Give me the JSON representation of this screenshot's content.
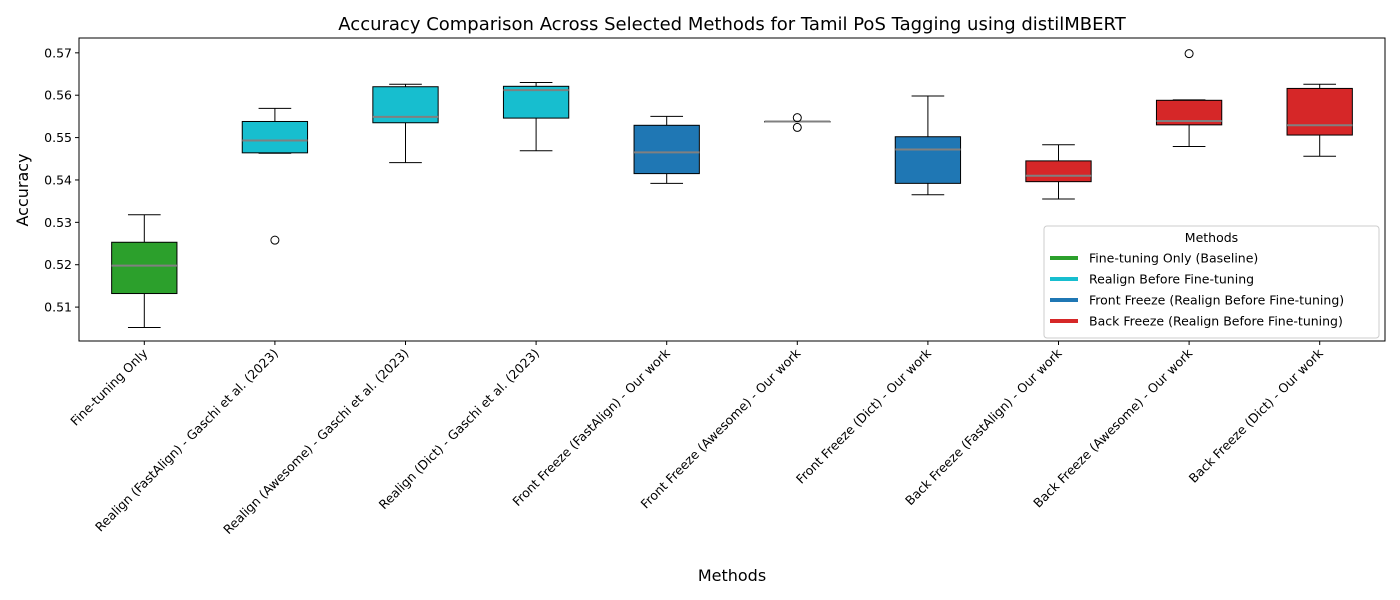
{
  "chart_data": {
    "type": "box",
    "title": "Accuracy Comparison Across Selected Methods for Tamil PoS Tagging using distilMBERT",
    "xlabel": "Methods",
    "ylabel": "Accuracy",
    "ylim": [
      0.502,
      0.5735
    ],
    "yticks": [
      0.51,
      0.52,
      0.53,
      0.54,
      0.55,
      0.56,
      0.57
    ],
    "grid": false,
    "legend": {
      "title": "Methods",
      "position": "center-right",
      "entries": [
        {
          "label": "Fine-tuning Only (Baseline)",
          "color": "#2ca02c"
        },
        {
          "label": "Realign Before Fine-tuning",
          "color": "#17becf"
        },
        {
          "label": "Front Freeze (Realign Before Fine-tuning)",
          "color": "#1f77b4"
        },
        {
          "label": "Back Freeze (Realign Before Fine-tuning)",
          "color": "#d62728"
        }
      ]
    },
    "series": [
      {
        "category": "Fine-tuning Only",
        "group": 0,
        "whisker_low": 0.5052,
        "q1": 0.5132,
        "median": 0.5198,
        "q3": 0.5253,
        "whisker_high": 0.5318,
        "outliers": []
      },
      {
        "category": "Realign (FastAlign) - Gaschi et al. (2023)",
        "group": 1,
        "whisker_low": 0.5463,
        "q1": 0.5464,
        "median": 0.5493,
        "q3": 0.5538,
        "whisker_high": 0.5569,
        "outliers": [
          0.5258
        ]
      },
      {
        "category": "Realign (Awesome) - Gaschi et al. (2023)",
        "group": 1,
        "whisker_low": 0.5441,
        "q1": 0.5535,
        "median": 0.5549,
        "q3": 0.562,
        "whisker_high": 0.5626,
        "outliers": []
      },
      {
        "category": "Realign (Dict) - Gaschi et al. (2023)",
        "group": 1,
        "whisker_low": 0.5469,
        "q1": 0.5546,
        "median": 0.5612,
        "q3": 0.5621,
        "whisker_high": 0.563,
        "outliers": []
      },
      {
        "category": "Front Freeze (FastAlign) - Our work",
        "group": 2,
        "whisker_low": 0.5392,
        "q1": 0.5415,
        "median": 0.5465,
        "q3": 0.5529,
        "whisker_high": 0.555,
        "outliers": []
      },
      {
        "category": "Front Freeze (Awesome) - Our work",
        "group": 2,
        "whisker_low": 0.5538,
        "q1": 0.5538,
        "median": 0.5538,
        "q3": 0.5538,
        "whisker_high": 0.5538,
        "outliers": [
          0.5547,
          0.5524
        ]
      },
      {
        "category": "Front Freeze (Dict) - Our work",
        "group": 2,
        "whisker_low": 0.5365,
        "q1": 0.5392,
        "median": 0.5472,
        "q3": 0.5502,
        "whisker_high": 0.5598,
        "outliers": []
      },
      {
        "category": "Back Freeze (FastAlign) - Our work",
        "group": 3,
        "whisker_low": 0.5355,
        "q1": 0.5396,
        "median": 0.541,
        "q3": 0.5445,
        "whisker_high": 0.5483,
        "outliers": []
      },
      {
        "category": "Back Freeze (Awesome) - Our work",
        "group": 3,
        "whisker_low": 0.5479,
        "q1": 0.553,
        "median": 0.5539,
        "q3": 0.5588,
        "whisker_high": 0.5589,
        "outliers": [
          0.5698
        ]
      },
      {
        "category": "Back Freeze (Dict) - Our work",
        "group": 3,
        "whisker_low": 0.5456,
        "q1": 0.5506,
        "median": 0.5529,
        "q3": 0.5616,
        "whisker_high": 0.5626,
        "outliers": []
      }
    ],
    "median_color": "#808080"
  }
}
